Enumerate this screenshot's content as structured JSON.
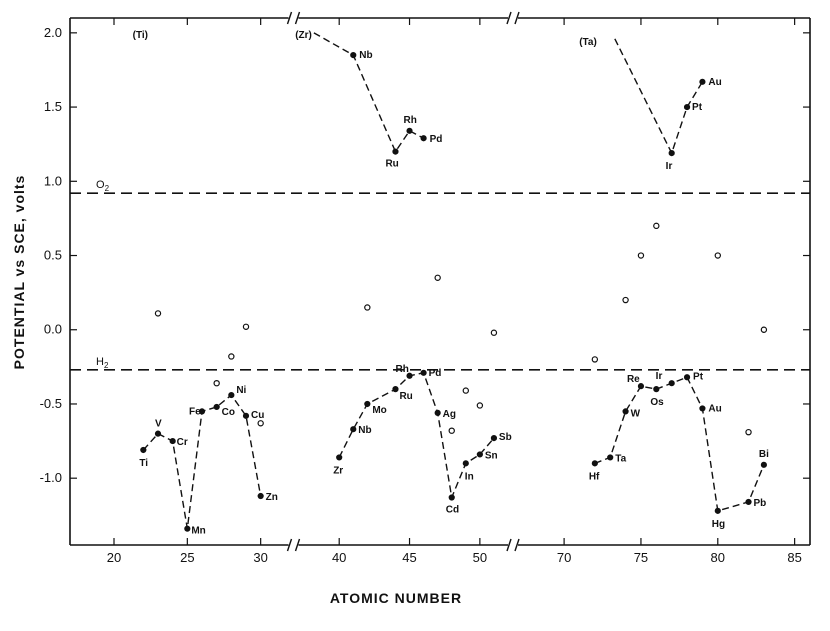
{
  "chart_data": {
    "type": "scatter",
    "xlabel": "ATOMIC NUMBER",
    "ylabel": "POTENTIAL vs SCE, volts",
    "ylim": [
      -1.45,
      2.1
    ],
    "grid": false,
    "x_segments": [
      {
        "range": [
          17,
          32
        ],
        "ticks": [
          20,
          25,
          30
        ],
        "tick_labels": [
          "20",
          "25",
          "30"
        ]
      },
      {
        "range": [
          37,
          52
        ],
        "ticks": [
          40,
          45,
          50
        ],
        "tick_labels": [
          "40",
          "45",
          "50"
        ]
      },
      {
        "range": [
          67,
          86
        ],
        "ticks": [
          70,
          75,
          80,
          85
        ],
        "tick_labels": [
          "70",
          "75",
          "80",
          "85"
        ]
      }
    ],
    "y_ticks": [
      2.0,
      1.5,
      1.0,
      0.5,
      0.0,
      -0.5,
      -1.0
    ],
    "y_tick_labels": [
      "2.0",
      "1.5",
      "1.0",
      "0.5",
      "0.0",
      "-0.5",
      "-1.0"
    ],
    "reference_lines": [
      {
        "label": "O2",
        "label_main": "O",
        "label_sub": "2",
        "y": 0.92
      },
      {
        "label": "H2",
        "label_main": "H",
        "label_sub": "2",
        "y": -0.27
      }
    ],
    "upper_series": [
      {
        "start_label": "(Ti)",
        "start": [
          23,
          2.0
        ],
        "points": []
      },
      {
        "start_label": "(Zr)",
        "start": [
          38.2,
          2.0
        ],
        "points": [
          {
            "label": "Nb",
            "x": 41,
            "y": 1.85
          },
          {
            "label": "Ru",
            "x": 44,
            "y": 1.2
          },
          {
            "label": "Rh",
            "x": 45,
            "y": 1.34
          },
          {
            "label": "Pd",
            "x": 46,
            "y": 1.29
          }
        ]
      },
      {
        "start_label": "(Ta)",
        "start": [
          73.3,
          1.96
        ],
        "points": [
          {
            "label": "Ir",
            "x": 77,
            "y": 1.19
          },
          {
            "label": "Pt",
            "x": 78,
            "y": 1.5
          },
          {
            "label": "Au",
            "x": 79,
            "y": 1.67
          }
        ]
      }
    ],
    "lower_series": [
      {
        "name": "period-4",
        "points": [
          {
            "label": "Ti",
            "x": 22,
            "y": -0.81
          },
          {
            "label": "V",
            "x": 23,
            "y": -0.7
          },
          {
            "label": "Cr",
            "x": 24,
            "y": -0.75
          },
          {
            "label": "Mn",
            "x": 25,
            "y": -1.34
          },
          {
            "label": "Fe",
            "x": 26,
            "y": -0.55
          },
          {
            "label": "Co",
            "x": 27,
            "y": -0.52
          },
          {
            "label": "Ni",
            "x": 28,
            "y": -0.44
          },
          {
            "label": "Cu",
            "x": 29,
            "y": -0.58
          },
          {
            "label": "Zn",
            "x": 30,
            "y": -1.12
          }
        ]
      },
      {
        "name": "period-5",
        "points": [
          {
            "label": "Zr",
            "x": 40,
            "y": -0.86
          },
          {
            "label": "Nb",
            "x": 41,
            "y": -0.67
          },
          {
            "label": "Mo",
            "x": 42,
            "y": -0.5
          },
          {
            "label": "Ru",
            "x": 44,
            "y": -0.4
          },
          {
            "label": "Rh",
            "x": 45,
            "y": -0.31
          },
          {
            "label": "Pd",
            "x": 46,
            "y": -0.29
          },
          {
            "label": "Ag",
            "x": 47,
            "y": -0.56
          },
          {
            "label": "Cd",
            "x": 48,
            "y": -1.13
          },
          {
            "label": "In",
            "x": 49,
            "y": -0.9
          },
          {
            "label": "Sn",
            "x": 50,
            "y": -0.84
          },
          {
            "label": "Sb",
            "x": 51,
            "y": -0.73
          }
        ]
      },
      {
        "name": "period-6",
        "points": [
          {
            "label": "Hf",
            "x": 72,
            "y": -0.9
          },
          {
            "label": "Ta",
            "x": 73,
            "y": -0.86
          },
          {
            "label": "W",
            "x": 74,
            "y": -0.55
          },
          {
            "label": "Re",
            "x": 75,
            "y": -0.38
          },
          {
            "label": "Os",
            "x": 76,
            "y": -0.4
          },
          {
            "label": "Ir",
            "x": 77,
            "y": -0.36
          },
          {
            "label": "Pt",
            "x": 78,
            "y": -0.32
          },
          {
            "label": "Au",
            "x": 79,
            "y": -0.53
          },
          {
            "label": "Hg",
            "x": 80,
            "y": -1.22
          },
          {
            "label": "Pb",
            "x": 82,
            "y": -1.16
          },
          {
            "label": "Bi",
            "x": 83,
            "y": -0.91
          }
        ]
      }
    ],
    "open_points": [
      {
        "x": 23,
        "y": 0.11
      },
      {
        "x": 27,
        "y": -0.36
      },
      {
        "x": 28,
        "y": -0.18
      },
      {
        "x": 29,
        "y": 0.02
      },
      {
        "x": 30,
        "y": -0.63
      },
      {
        "x": 42,
        "y": 0.15
      },
      {
        "x": 47,
        "y": 0.35
      },
      {
        "x": 48,
        "y": -0.68
      },
      {
        "x": 49,
        "y": -0.41
      },
      {
        "x": 50,
        "y": -0.51
      },
      {
        "x": 51,
        "y": -0.02
      },
      {
        "x": 72,
        "y": -0.2
      },
      {
        "x": 74,
        "y": 0.2
      },
      {
        "x": 75,
        "y": 0.5
      },
      {
        "x": 76,
        "y": 0.7
      },
      {
        "x": 80,
        "y": 0.5
      },
      {
        "x": 82,
        "y": -0.69
      },
      {
        "x": 83,
        "y": 0.0
      }
    ]
  }
}
